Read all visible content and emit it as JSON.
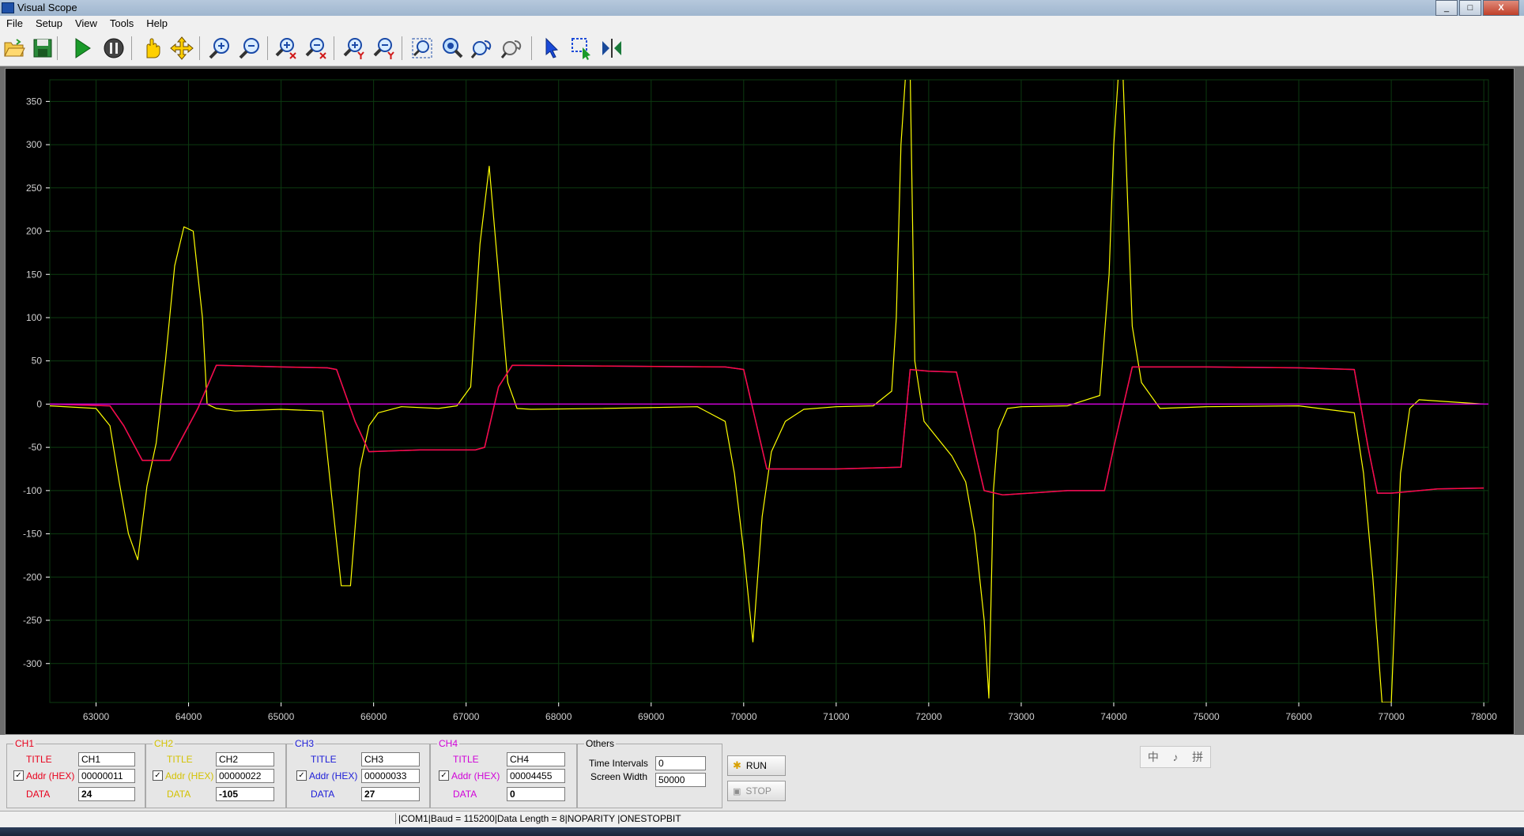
{
  "window": {
    "title": "Visual Scope",
    "min_label": "_",
    "max_label": "□",
    "close_label": "X"
  },
  "menu": [
    "File",
    "Setup",
    "View",
    "Tools",
    "Help"
  ],
  "plot": {
    "y_ticks": [
      350,
      300,
      250,
      200,
      150,
      100,
      50,
      0,
      -50,
      -100,
      -150,
      -200,
      -250,
      -300
    ],
    "x_ticks": [
      63000,
      64000,
      65000,
      66000,
      67000,
      68000,
      69000,
      70000,
      71000,
      72000,
      73000,
      74000,
      75000,
      76000,
      77000,
      78000
    ],
    "y_range": [
      -345,
      375
    ],
    "x_range": [
      62500,
      78050
    ],
    "colors": {
      "ch1": "#ff0a3c",
      "ch2": "#ffff00",
      "ch3": "#2a2aff",
      "ch4": "#d000d8",
      "grid": "#0c3a10",
      "axis": "#ffffff"
    }
  },
  "chart_data": {
    "type": "line",
    "title": "",
    "xlabel": "",
    "ylabel": "",
    "xlim": [
      62500,
      78050
    ],
    "ylim": [
      -345,
      375
    ],
    "grid": true,
    "series": [
      {
        "name": "CH1",
        "color": "#ff0a3c",
        "x": [
          62500,
          63150,
          63300,
          63500,
          63800,
          64100,
          64300,
          65000,
          65500,
          65600,
          65800,
          65950,
          66500,
          67100,
          67200,
          67350,
          67500,
          68500,
          69800,
          70000,
          70250,
          70500,
          71000,
          71700,
          71800,
          72000,
          72300,
          72600,
          72800,
          73500,
          73900,
          74000,
          74200,
          75000,
          76000,
          76600,
          76750,
          76850,
          77000,
          77500,
          78000
        ],
        "y": [
          0,
          -2,
          -25,
          -65,
          -65,
          -5,
          45,
          43,
          42,
          40,
          -20,
          -55,
          -53,
          -53,
          -50,
          20,
          45,
          44,
          43,
          40,
          -75,
          -75,
          -75,
          -73,
          40,
          38,
          37,
          -100,
          -105,
          -100,
          -100,
          -50,
          43,
          43,
          42,
          40,
          -50,
          -103,
          -103,
          -98,
          -97
        ]
      },
      {
        "name": "CH2",
        "color": "#ffff00",
        "x": [
          62500,
          63000,
          63150,
          63250,
          63350,
          63450,
          63550,
          63650,
          63750,
          63850,
          63950,
          64050,
          64150,
          64200,
          64300,
          64500,
          65000,
          65450,
          65550,
          65650,
          65750,
          65850,
          65950,
          66050,
          66300,
          66700,
          66900,
          67050,
          67150,
          67250,
          67350,
          67450,
          67550,
          67700,
          68500,
          69500,
          69800,
          69900,
          70000,
          70100,
          70200,
          70300,
          70450,
          70650,
          71000,
          71400,
          71600,
          71650,
          71700,
          71750,
          71800,
          71850,
          71950,
          72100,
          72250,
          72400,
          72500,
          72600,
          72650,
          72700,
          72750,
          72850,
          73000,
          73500,
          73850,
          73950,
          74000,
          74050,
          74100,
          74200,
          74300,
          74500,
          75000,
          76000,
          76600,
          76700,
          76800,
          76900,
          77000,
          77100,
          77200,
          77300,
          78000
        ],
        "y": [
          -2,
          -5,
          -25,
          -90,
          -150,
          -180,
          -95,
          -45,
          50,
          160,
          205,
          200,
          100,
          0,
          -5,
          -8,
          -6,
          -8,
          -110,
          -210,
          -210,
          -75,
          -25,
          -10,
          -3,
          -5,
          -2,
          20,
          185,
          275,
          150,
          25,
          -5,
          -6,
          -5,
          -3,
          -20,
          -80,
          -170,
          -275,
          -130,
          -55,
          -20,
          -6,
          -3,
          -2,
          15,
          100,
          300,
          380,
          380,
          50,
          -20,
          -40,
          -60,
          -90,
          -150,
          -250,
          -340,
          -100,
          -30,
          -5,
          -3,
          -2,
          10,
          150,
          300,
          380,
          380,
          90,
          25,
          -5,
          -3,
          -2,
          -10,
          -80,
          -200,
          -345,
          -345,
          -80,
          -5,
          5,
          0
        ]
      },
      {
        "name": "CH3",
        "color": "#2a2aff",
        "x": [
          62500,
          63150,
          63300,
          63500,
          63800,
          64100,
          64300,
          65000,
          65500,
          65600,
          65800,
          65950,
          66500,
          67100,
          67200,
          67350,
          67500,
          68500,
          69800,
          70000,
          70250,
          70500,
          71000,
          71700,
          71800,
          72000,
          72300,
          72600,
          72800,
          73500,
          73900,
          74000,
          74200,
          75000,
          76000,
          76600,
          76750,
          76850,
          77000,
          77500,
          78000
        ],
        "y": [
          0,
          -2,
          -25,
          -65,
          -65,
          -5,
          45,
          43,
          42,
          40,
          -20,
          -55,
          -53,
          -53,
          -50,
          20,
          45,
          44,
          43,
          40,
          -75,
          -75,
          -75,
          -73,
          40,
          38,
          37,
          -100,
          -105,
          -100,
          -100,
          -50,
          43,
          43,
          42,
          40,
          -50,
          -103,
          -103,
          -98,
          -97
        ]
      },
      {
        "name": "CH4",
        "color": "#d000d8",
        "x": [
          62500,
          78050
        ],
        "y": [
          0,
          0
        ]
      }
    ]
  },
  "channels": [
    {
      "header": "CH1",
      "title_label": "TITLE",
      "title_value": "CH1",
      "addr_label": "Addr (HEX)",
      "addr_value": "00000011",
      "data_label": "DATA",
      "data_value": "24",
      "checked": "✓",
      "color": "#e8001c",
      "addr_color": "#e8001c",
      "data_color": "#e8001c"
    },
    {
      "header": "CH2",
      "title_label": "TITLE",
      "title_value": "CH2",
      "addr_label": "Addr (HEX)",
      "addr_value": "00000022",
      "data_label": "DATA",
      "data_value": "-105",
      "checked": "✓",
      "color": "#d4c200",
      "addr_color": "#d4c200",
      "data_color": "#d4c200"
    },
    {
      "header": "CH3",
      "title_label": "TITLE",
      "title_value": "CH3",
      "addr_label": "Addr (HEX)",
      "addr_value": "00000033",
      "data_label": "DATA",
      "data_value": "27",
      "checked": "✓",
      "color": "#1c1cd8",
      "addr_color": "#1c1cd8",
      "data_color": "#1c1cd8"
    },
    {
      "header": "CH4",
      "title_label": "TITLE",
      "title_value": "CH4",
      "addr_label": "Addr (HEX)",
      "addr_value": "00004455",
      "data_label": "DATA",
      "data_value": "0",
      "checked": "✓",
      "color": "#d000d8",
      "addr_color": "#d000d8",
      "data_color": "#d000d8"
    }
  ],
  "others": {
    "header": "Others",
    "time_label": "Time Intervals",
    "time_value": "0",
    "width_label": "Screen Width",
    "width_value": "50000"
  },
  "buttons": {
    "run": "RUN",
    "stop": "STOP"
  },
  "ime": [
    "中",
    "♪",
    "拼"
  ],
  "status": "|COM1|Baud = 115200|Data Length = 8|NOPARITY  |ONESTOPBIT",
  "toolbar_icons": [
    "open-folder-icon",
    "save-icon",
    "play-icon",
    "pause-icon",
    "hand-icon",
    "move-icon",
    "zoom-in-icon",
    "zoom-out-icon",
    "zoom-in-x-icon",
    "zoom-out-x-icon",
    "zoom-in-y-icon",
    "zoom-out-y-icon",
    "zoom-fit-icon",
    "zoom-box-icon",
    "zoom-undo-icon",
    "zoom-redo-icon",
    "pointer-icon",
    "select-box-icon",
    "split-icon"
  ]
}
